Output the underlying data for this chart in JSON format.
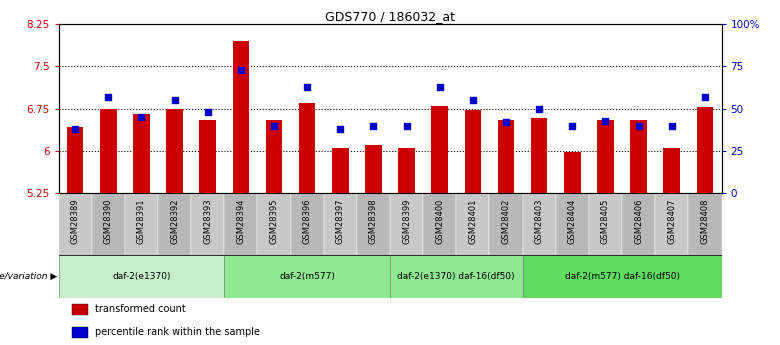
{
  "title": "GDS770 / 186032_at",
  "samples": [
    "GSM28389",
    "GSM28390",
    "GSM28391",
    "GSM28392",
    "GSM28393",
    "GSM28394",
    "GSM28395",
    "GSM28396",
    "GSM28397",
    "GSM28398",
    "GSM28399",
    "GSM28400",
    "GSM28401",
    "GSM28402",
    "GSM28403",
    "GSM28404",
    "GSM28405",
    "GSM28406",
    "GSM28407",
    "GSM28408"
  ],
  "transformed_count": [
    6.42,
    6.75,
    6.65,
    6.75,
    6.55,
    7.95,
    6.55,
    6.85,
    6.05,
    6.1,
    6.05,
    6.8,
    6.72,
    6.55,
    6.58,
    5.98,
    6.55,
    6.55,
    6.05,
    6.78
  ],
  "percentile_rank": [
    38,
    57,
    45,
    55,
    48,
    73,
    40,
    63,
    38,
    40,
    40,
    63,
    55,
    42,
    50,
    40,
    43,
    40,
    40,
    57
  ],
  "groups_info": [
    {
      "label": "daf-2(e1370)",
      "start": 0,
      "end": 4,
      "color": "#c8f0c8"
    },
    {
      "label": "daf-2(m577)",
      "start": 5,
      "end": 9,
      "color": "#90e890"
    },
    {
      "label": "daf-2(e1370) daf-16(df50)",
      "start": 10,
      "end": 13,
      "color": "#90e890"
    },
    {
      "label": "daf-2(m577) daf-16(df50)",
      "start": 14,
      "end": 19,
      "color": "#60dc60"
    }
  ],
  "ylim_left": [
    5.25,
    8.25
  ],
  "ylim_right": [
    0,
    100
  ],
  "yticks_left": [
    5.25,
    6.0,
    6.75,
    7.5,
    8.25
  ],
  "yticks_right": [
    0,
    25,
    50,
    75,
    100
  ],
  "ytick_labels_left": [
    "5.25",
    "6",
    "6.75",
    "7.5",
    "8.25"
  ],
  "ytick_labels_right": [
    "0",
    "25",
    "50",
    "75",
    "100%"
  ],
  "bar_color": "#cc0000",
  "dot_color": "#0000cc",
  "bar_width": 0.5,
  "grid_color": "#000000",
  "grid_linestyle": "dotted",
  "grid_linewidth": 0.8,
  "legend_items": [
    {
      "color": "#cc0000",
      "label": "transformed count"
    },
    {
      "color": "#0000cc",
      "label": "percentile rank within the sample"
    }
  ],
  "genotype_label": "genotype/variation"
}
